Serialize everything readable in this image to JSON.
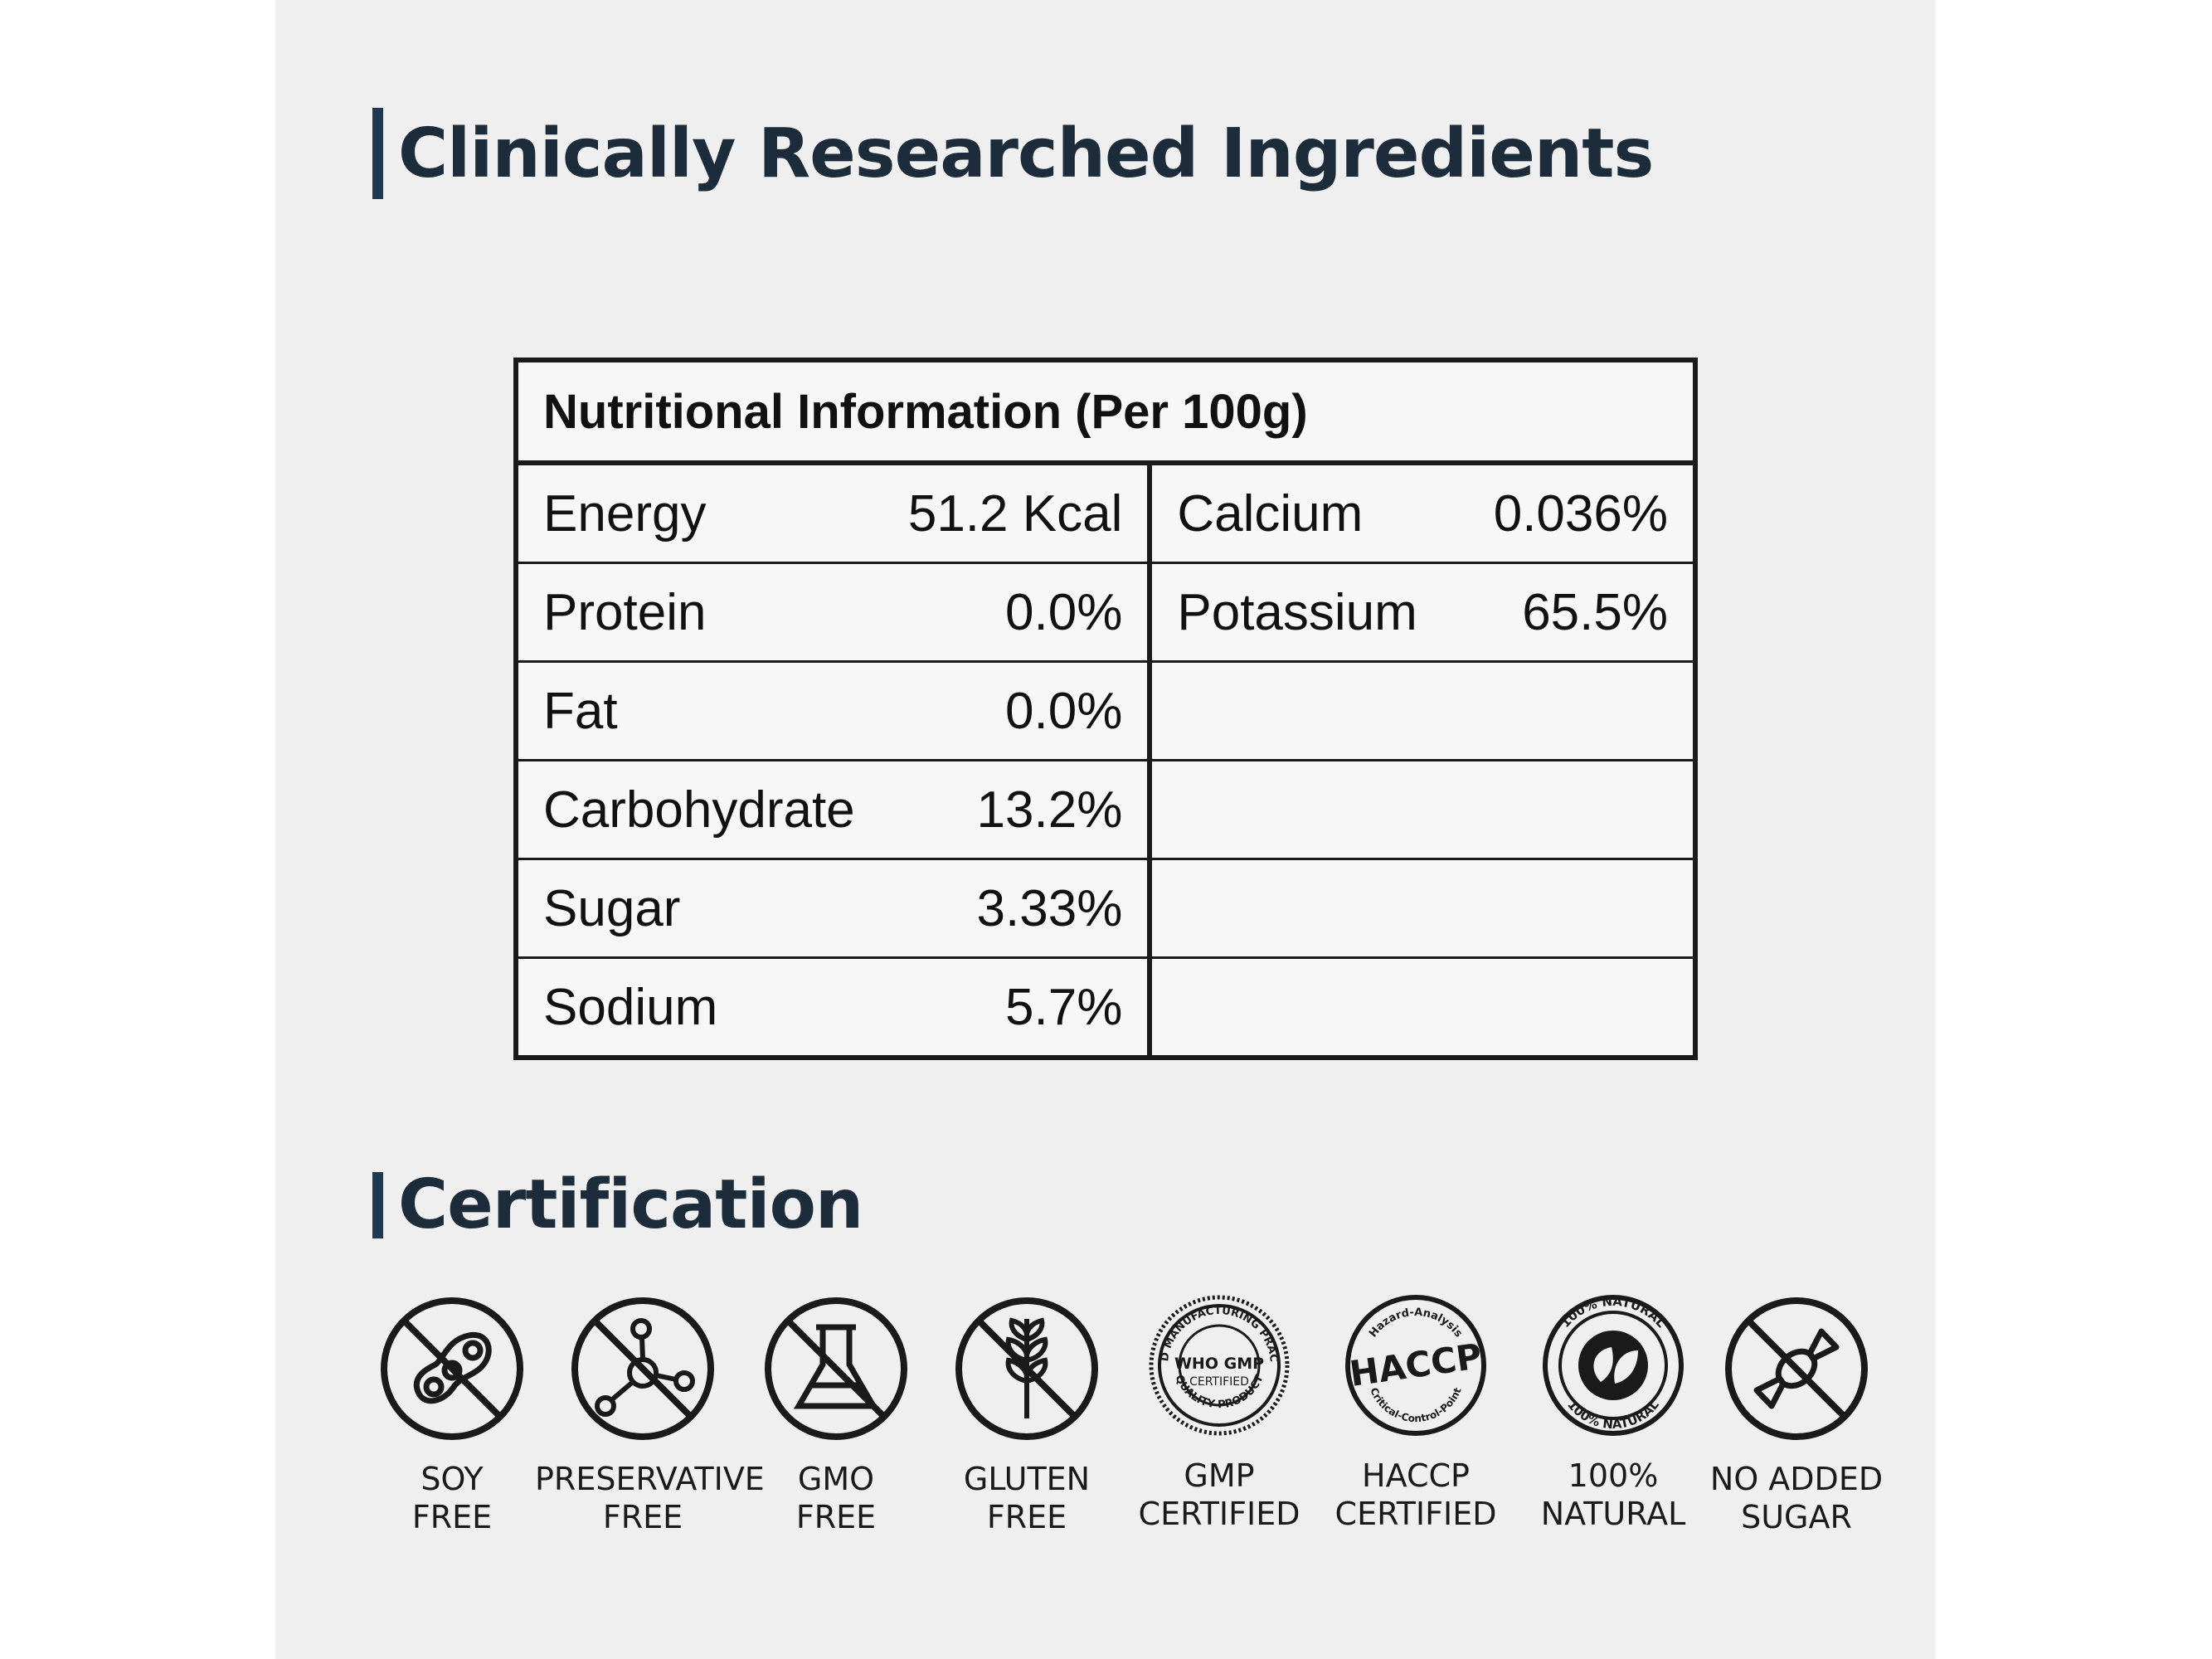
{
  "ingredients_title": "Clinically Researched Ingredients",
  "table": {
    "header": "Nutritional Information (Per 100g)",
    "left": [
      {
        "name": "Energy",
        "value": "51.2 Kcal"
      },
      {
        "name": "Protein",
        "value": "0.0%"
      },
      {
        "name": "Fat",
        "value": "0.0%"
      },
      {
        "name": "Carbohydrate",
        "value": "13.2%"
      },
      {
        "name": "Sugar",
        "value": "3.33%"
      },
      {
        "name": "Sodium",
        "value": "5.7%"
      }
    ],
    "right": [
      {
        "name": "Calcium",
        "value": "0.036%"
      },
      {
        "name": "Potassium",
        "value": "65.5%"
      },
      {
        "name": "",
        "value": ""
      },
      {
        "name": "",
        "value": ""
      },
      {
        "name": "",
        "value": ""
      },
      {
        "name": "",
        "value": ""
      }
    ]
  },
  "certification_title": "Certification",
  "certs": [
    {
      "icon": "soy-free-icon",
      "line1": "SOY",
      "line2": "FREE"
    },
    {
      "icon": "preservative-free-icon",
      "line1": "PRESERVATIVE",
      "line2": "FREE"
    },
    {
      "icon": "gmo-free-icon",
      "line1": "GMO",
      "line2": "FREE"
    },
    {
      "icon": "gluten-free-icon",
      "line1": "GLUTEN",
      "line2": "FREE"
    },
    {
      "icon": "gmp-certified-icon",
      "line1": "GMP",
      "line2": "CERTIFIED",
      "badge_top": "GOOD MANUFACTURING PRACTICE",
      "badge_mid": "WHO GMP",
      "badge_sub": "CERTIFIED",
      "badge_bottom": "QUALITY PRODUCT"
    },
    {
      "icon": "haccp-certified-icon",
      "line1": "HACCP",
      "line2": "CERTIFIED",
      "badge_top": "Hazard-Analysis",
      "badge_mid": "HACCP",
      "badge_bottom": "Critical-Control-Point"
    },
    {
      "icon": "natural-icon",
      "line1": "100%",
      "line2": "NATURAL",
      "badge_top": "100% NATURAL",
      "badge_bottom": "100% NATURAL"
    },
    {
      "icon": "no-added-sugar-icon",
      "line1": "NO ADDED",
      "line2": "SUGAR"
    }
  ]
}
